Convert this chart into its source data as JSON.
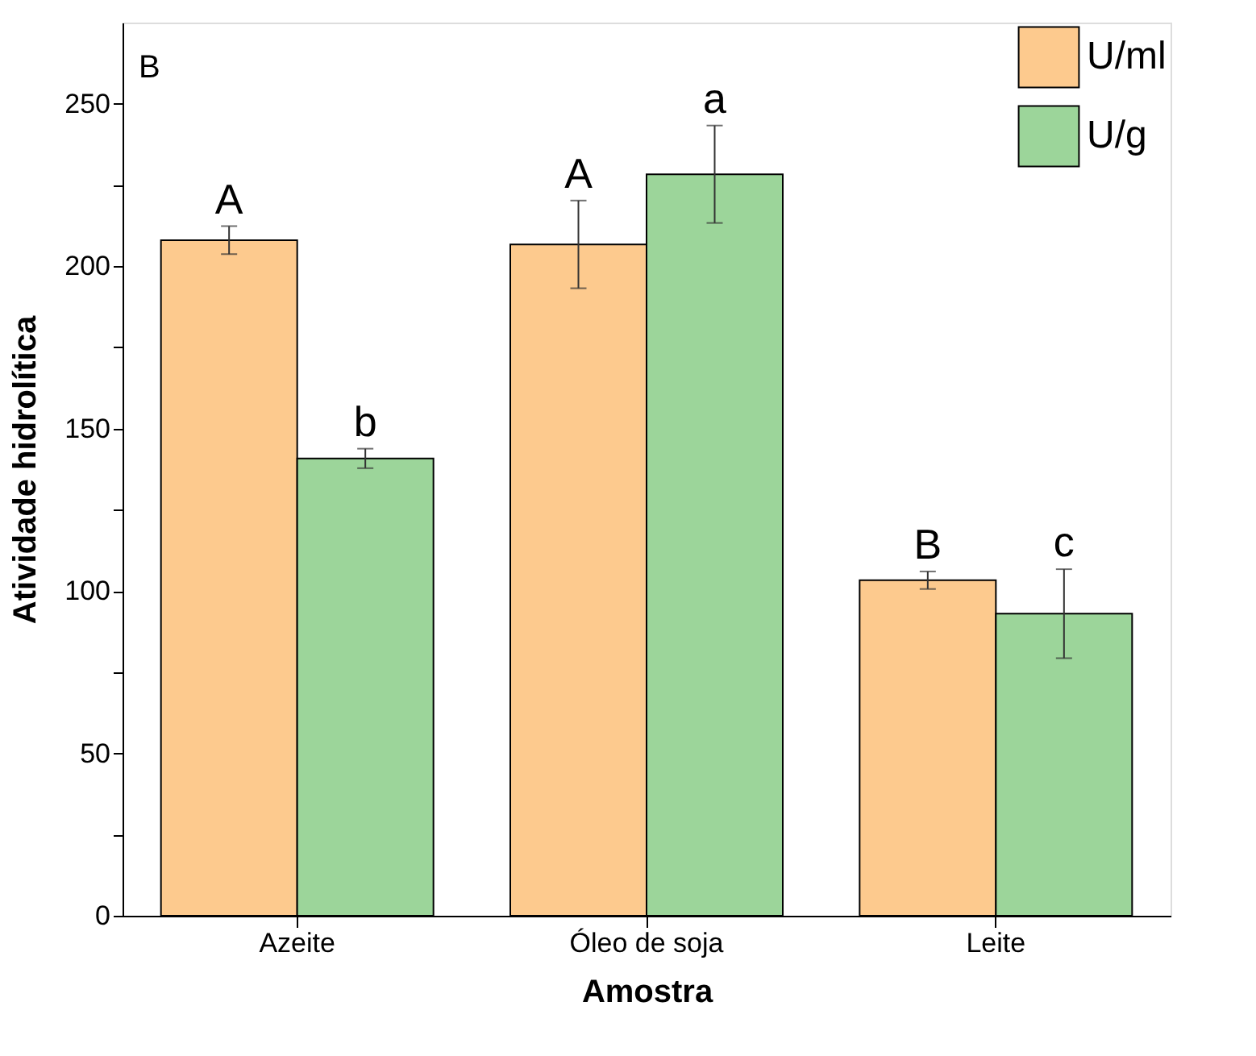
{
  "chart_data": {
    "type": "bar",
    "xlabel": "Amostra",
    "ylabel": "Atividade hidrolítica",
    "categories": [
      "Azeite",
      "Óleo de soja",
      "Leite"
    ],
    "series": [
      {
        "name": "U/ml",
        "color": "#fdca8e",
        "values": [
          208,
          206.7,
          103.3
        ],
        "errors": [
          4.3,
          13.5,
          2.7
        ],
        "value_labels": [
          "A",
          "A",
          "B"
        ]
      },
      {
        "name": "U/g",
        "color": "#9cd59a",
        "values": [
          140.8,
          228.3,
          93
        ],
        "errors": [
          3,
          15,
          13.7
        ],
        "value_labels": [
          "b",
          "a",
          "c"
        ]
      }
    ],
    "ylim": [
      0,
      275
    ],
    "yticks": [
      0,
      {
        "value": 25,
        "label": null
      },
      50,
      {
        "value": 75,
        "label": null
      },
      100,
      {
        "value": 125,
        "label": null
      },
      150,
      {
        "value": 175,
        "label": null
      },
      200,
      {
        "value": 225,
        "label": null
      },
      250
    ],
    "annotations": [
      "B"
    ],
    "legend": "top right",
    "grid": false
  }
}
